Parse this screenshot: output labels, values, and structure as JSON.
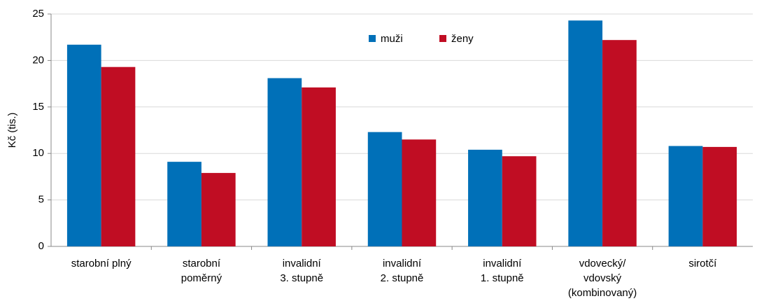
{
  "chart_data": {
    "type": "bar",
    "y_label": "Kč (tis.)",
    "categories": [
      [
        "starobní plný"
      ],
      [
        "starobní",
        "poměrný"
      ],
      [
        "invalidní",
        "3. stupně"
      ],
      [
        "invalidní",
        "2. stupně"
      ],
      [
        "invalidní",
        "1. stupně"
      ],
      [
        "vdovecký/",
        "vdovský",
        "(kombinovaný)"
      ],
      [
        "sirotčí"
      ]
    ],
    "series": [
      {
        "name": "muži",
        "color": "#0070b8",
        "values": [
          21.7,
          9.1,
          18.1,
          12.3,
          10.4,
          24.3,
          10.8
        ]
      },
      {
        "name": "ženy",
        "color": "#c00d23",
        "values": [
          19.3,
          7.9,
          17.1,
          11.5,
          9.7,
          22.2,
          10.7
        ]
      }
    ],
    "ylim": [
      0,
      25
    ],
    "yticks": [
      0,
      5,
      10,
      15,
      20,
      25
    ],
    "grid": true
  }
}
